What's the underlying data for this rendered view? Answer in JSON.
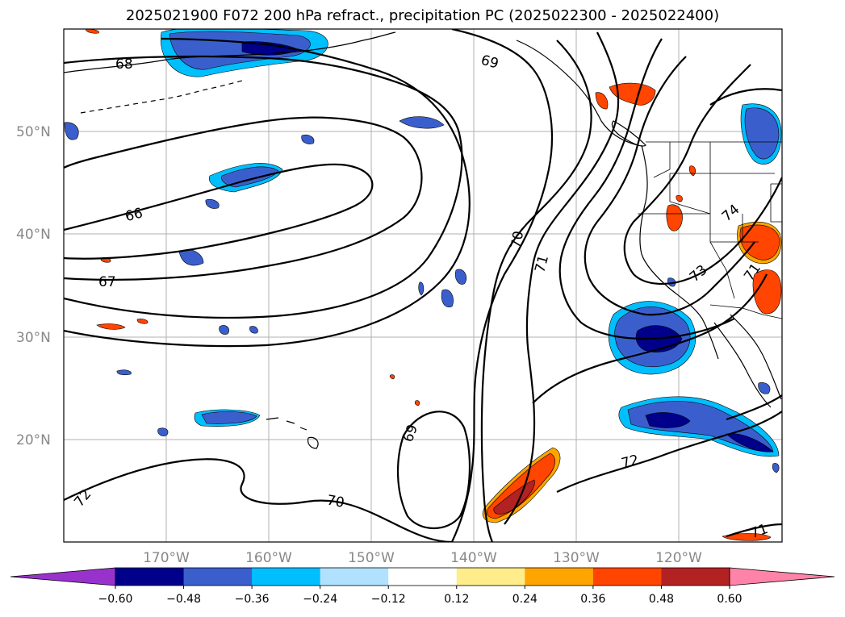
{
  "title": "2025021900 F072 200 hPa refract., precipitation PC (2025022300 - 2025022400)",
  "lat_labels": [
    "50°N",
    "40°N",
    "30°N",
    "20°N"
  ],
  "lon_labels": [
    "170°W",
    "160°W",
    "150°W",
    "140°W",
    "130°W",
    "120°W"
  ],
  "contour_labels": [
    "68",
    "69",
    "66",
    "67",
    "70",
    "71",
    "72",
    "73",
    "74",
    "69",
    "70",
    "72",
    "71",
    "71"
  ],
  "colorbar": {
    "colors": [
      "#9932cc",
      "#00008b",
      "#3a5fcd",
      "#00bfff",
      "#b0e2ff",
      "#ffffff",
      "#ffec8b",
      "#ffa500",
      "#ff4500",
      "#b22222",
      "#ff83a8",
      "#ff83a8"
    ],
    "tick_labels": [
      "−0.60",
      "−0.48",
      "−0.36",
      "−0.24",
      "−0.12",
      "0.12",
      "0.24",
      "0.36",
      "0.48",
      "0.60"
    ]
  }
}
